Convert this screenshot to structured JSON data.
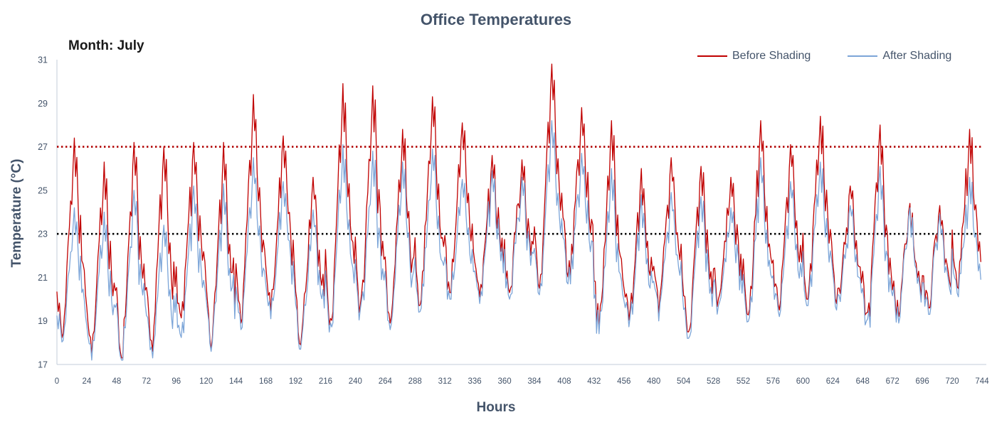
{
  "title": "Office Temperatures",
  "annotation": "Month: July",
  "x_axis": {
    "label": "Hours"
  },
  "y_axis": {
    "label": "Temperature (°C)"
  },
  "legend": [
    {
      "label": "Before Shading",
      "color": "#C00000"
    },
    {
      "label": "After Shading",
      "color": "#7CA5D8"
    }
  ],
  "chart_data": {
    "type": "line",
    "title": "Office Temperatures",
    "xlabel": "Hours",
    "ylabel": "Temperature (°C)",
    "x_unit": "hour",
    "x_range": [
      0,
      744
    ],
    "y_range": [
      17,
      31
    ],
    "x_ticks": [
      0,
      24,
      48,
      72,
      96,
      120,
      144,
      168,
      192,
      216,
      240,
      264,
      288,
      312,
      336,
      360,
      384,
      408,
      432,
      456,
      480,
      504,
      528,
      552,
      576,
      600,
      624,
      648,
      672,
      696,
      720,
      744
    ],
    "y_ticks": [
      17,
      19,
      21,
      23,
      25,
      27,
      29,
      31
    ],
    "grid": false,
    "legend_position": "top-right",
    "axis_color": "#C3CCD9",
    "tick_color": "#44546A",
    "ref_lines": [
      {
        "value": 27,
        "color": "#B00000",
        "style": "dotted"
      },
      {
        "value": 23,
        "color": "#000000",
        "style": "dotted"
      }
    ],
    "sampling": "hourly, 744 points per series (31 days); values reconstructed from per-day min/max read off the chart",
    "day_profile": [
      0.3,
      0.2,
      0.1,
      0.05,
      0.0,
      0.04,
      0.12,
      0.22,
      0.35,
      0.45,
      0.58,
      0.72,
      0.64,
      0.86,
      1.0,
      0.82,
      0.92,
      0.68,
      0.5,
      0.56,
      0.42,
      0.32,
      0.38,
      0.27
    ],
    "noise": {
      "seed": 7,
      "amplitude": 0.65,
      "night_boost": 0.7
    },
    "series": [
      {
        "name": "Before Shading",
        "color": "#C00000",
        "width": 1.3,
        "daily_min_max": [
          [
            18.2,
            27.4
          ],
          [
            17.4,
            26.3
          ],
          [
            17.3,
            27.2
          ],
          [
            17.6,
            27.0
          ],
          [
            18.8,
            27.2
          ],
          [
            17.7,
            27.2
          ],
          [
            18.9,
            29.4
          ],
          [
            19.4,
            27.5
          ],
          [
            17.9,
            25.6
          ],
          [
            18.6,
            29.9
          ],
          [
            19.1,
            29.8
          ],
          [
            18.9,
            27.8
          ],
          [
            19.7,
            29.3
          ],
          [
            20.3,
            28.1
          ],
          [
            20.1,
            26.6
          ],
          [
            20.3,
            26.4
          ],
          [
            20.5,
            30.8
          ],
          [
            21.0,
            28.8
          ],
          [
            18.6,
            28.2
          ],
          [
            18.9,
            26.0
          ],
          [
            19.3,
            26.5
          ],
          [
            18.5,
            26.1
          ],
          [
            19.6,
            25.6
          ],
          [
            19.0,
            28.2
          ],
          [
            19.5,
            27.1
          ],
          [
            20.0,
            28.4
          ],
          [
            19.8,
            25.2
          ],
          [
            18.7,
            28.0
          ],
          [
            19.2,
            24.4
          ],
          [
            19.6,
            24.3
          ],
          [
            20.3,
            27.8
          ]
        ]
      },
      {
        "name": "After Shading",
        "color": "#7CA5D8",
        "width": 1.3,
        "daily_min_max": [
          [
            18.0,
            24.2
          ],
          [
            17.2,
            24.0
          ],
          [
            17.2,
            25.0
          ],
          [
            17.3,
            23.4
          ],
          [
            17.9,
            25.2
          ],
          [
            17.6,
            25.3
          ],
          [
            18.6,
            26.5
          ],
          [
            19.1,
            25.4
          ],
          [
            17.7,
            24.1
          ],
          [
            18.4,
            27.1
          ],
          [
            18.9,
            26.8
          ],
          [
            18.6,
            26.3
          ],
          [
            19.4,
            26.9
          ],
          [
            20.0,
            25.5
          ],
          [
            19.8,
            25.9
          ],
          [
            20.0,
            25.6
          ],
          [
            20.2,
            28.2
          ],
          [
            20.7,
            26.7
          ],
          [
            18.4,
            26.0
          ],
          [
            18.6,
            24.8
          ],
          [
            19.0,
            24.9
          ],
          [
            18.2,
            24.7
          ],
          [
            19.3,
            24.2
          ],
          [
            18.7,
            26.5
          ],
          [
            19.2,
            25.4
          ],
          [
            19.7,
            26.3
          ],
          [
            19.5,
            24.3
          ],
          [
            18.4,
            26.1
          ],
          [
            18.9,
            24.2
          ],
          [
            19.3,
            23.9
          ],
          [
            20.0,
            25.6
          ]
        ]
      }
    ]
  }
}
